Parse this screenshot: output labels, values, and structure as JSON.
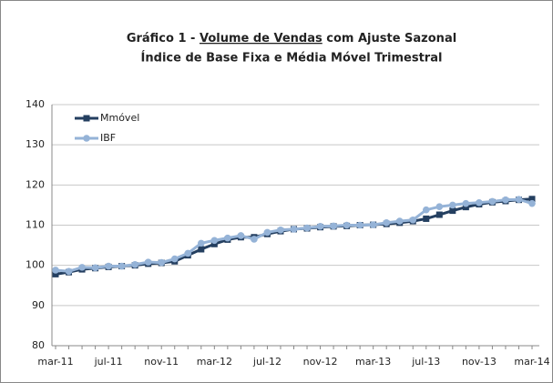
{
  "chart_data": {
    "type": "line",
    "title": {
      "prefix": "Gráfico 1 - ",
      "underlined": "Volume de Vendas",
      "suffix": " com Ajuste Sazonal"
    },
    "subtitle": "Índice de Base Fixa e Média Móvel Trimestral",
    "categories": [
      "mar-11",
      null,
      null,
      null,
      "jul-11",
      null,
      null,
      null,
      "nov-11",
      null,
      null,
      null,
      "mar-12",
      null,
      null,
      null,
      "jul-12",
      null,
      null,
      null,
      "nov-12",
      null,
      null,
      null,
      "mar-13",
      null,
      null,
      null,
      "jul-13",
      null,
      null,
      null,
      "nov-13",
      null,
      null,
      null,
      "mar-14"
    ],
    "series": [
      {
        "name": "Mmóvel",
        "color": "#243f60",
        "marker": "square",
        "values": [
          97.8,
          98.3,
          99.0,
          99.3,
          99.6,
          99.8,
          100.0,
          100.4,
          100.6,
          101.0,
          102.5,
          104.0,
          105.3,
          106.4,
          107.0,
          107.0,
          107.8,
          108.5,
          109.0,
          109.2,
          109.5,
          109.7,
          109.8,
          110.0,
          110.1,
          110.3,
          110.6,
          111.0,
          111.6,
          112.6,
          113.6,
          114.5,
          115.2,
          115.7,
          116.0,
          116.3,
          116.5
        ]
      },
      {
        "name": "IBF",
        "color": "#95b3d7",
        "marker": "circle",
        "values": [
          98.8,
          98.5,
          99.5,
          99.4,
          99.8,
          99.8,
          100.2,
          100.8,
          100.7,
          101.6,
          103.0,
          105.5,
          106.2,
          106.8,
          107.4,
          106.5,
          108.2,
          108.8,
          109.0,
          109.3,
          109.7,
          109.8,
          110.0,
          110.0,
          110.1,
          110.6,
          111.0,
          111.3,
          113.8,
          114.6,
          115.0,
          115.4,
          115.6,
          115.9,
          116.3,
          116.4,
          115.4
        ]
      }
    ],
    "ylim": [
      80,
      140
    ],
    "yticks": [
      80,
      90,
      100,
      110,
      120,
      130,
      140
    ],
    "grid": true,
    "legend": "top-left"
  }
}
